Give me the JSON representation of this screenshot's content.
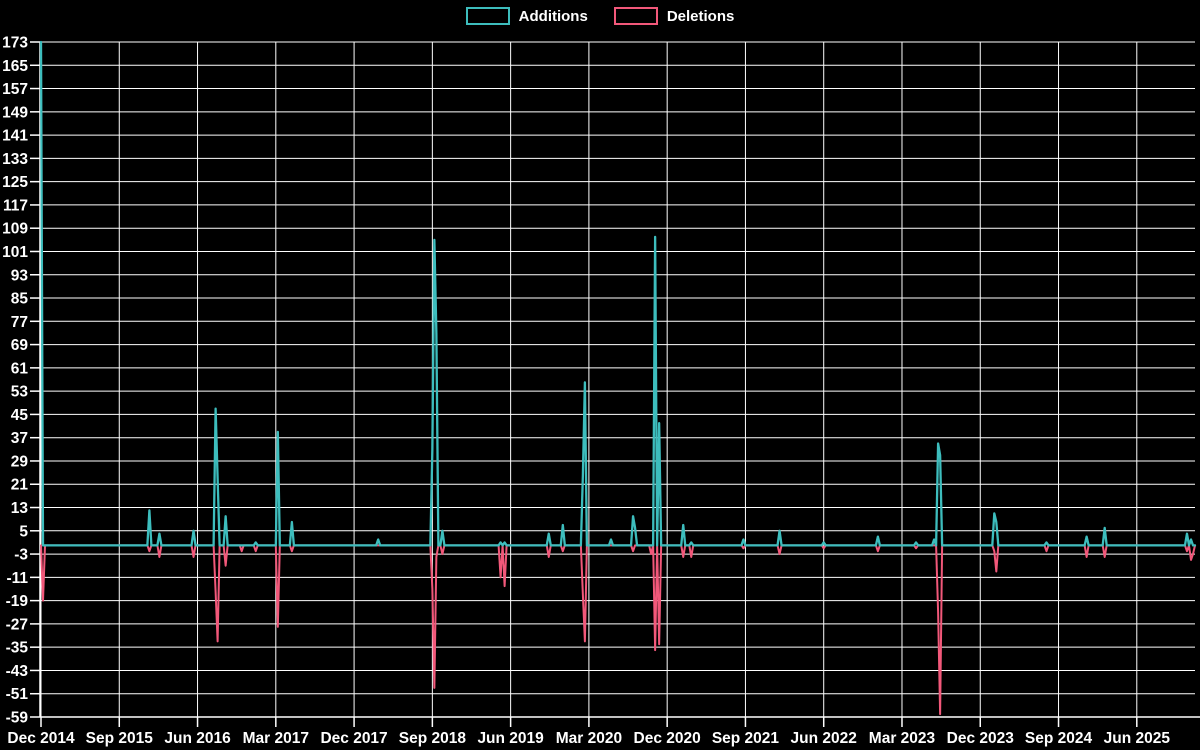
{
  "legend": {
    "additions_label": "Additions",
    "deletions_label": "Deletions"
  },
  "colors": {
    "background": "#000000",
    "grid": "#ffffff",
    "axis": "#ffffff",
    "text": "#ffffff",
    "additions": "#3dbdbd",
    "deletions": "#f2587a"
  },
  "chart_data": {
    "type": "line",
    "title": "",
    "xlabel": "",
    "ylabel": "",
    "legend_position": "top-center",
    "grid": true,
    "ylim": [
      -59,
      173
    ],
    "y_ticks": [
      173,
      165,
      157,
      149,
      141,
      133,
      125,
      117,
      109,
      101,
      93,
      85,
      77,
      69,
      61,
      53,
      45,
      37,
      29,
      21,
      13,
      5,
      -3,
      -11,
      -19,
      -27,
      -35,
      -43,
      -51,
      -59
    ],
    "x_tick_labels": [
      "Dec 2014",
      "Sep 2015",
      "Jun 2016",
      "Mar 2017",
      "Dec 2017",
      "Sep 2018",
      "Jun 2019",
      "Mar 2020",
      "Dec 2020",
      "Sep 2021",
      "Jun 2022",
      "Mar 2023",
      "Dec 2023",
      "Sep 2024",
      "Jun 2025"
    ],
    "x_tick_weeks": [
      0,
      39,
      78,
      117,
      156,
      195,
      234,
      273,
      312,
      351,
      390,
      429,
      468,
      507,
      546
    ],
    "x_unit": "weeks since Dec 2014",
    "total_weeks": 575,
    "baseline_value": 0,
    "series": [
      {
        "name": "Additions",
        "color": "#3dbdbd",
        "sparse_points": {
          "0": 173,
          "54": 12,
          "59": 4,
          "76": 5,
          "87": 47,
          "88": 23,
          "92": 10,
          "107": 1,
          "118": 39,
          "125": 8,
          "168": 2,
          "195": 33,
          "196": 105,
          "197": 73,
          "200": 5,
          "229": 1,
          "231": 1,
          "253": 4,
          "260": 7,
          "270": 24,
          "271": 56,
          "284": 2,
          "295": 10,
          "296": 6,
          "306": 106,
          "308": 42,
          "320": 7,
          "324": 1,
          "350": 2,
          "368": 5,
          "390": 1,
          "417": 3,
          "436": 1,
          "445": 2,
          "447": 35,
          "448": 31,
          "475": 11,
          "476": 8,
          "501": 1,
          "521": 3,
          "530": 6,
          "571": 4,
          "573": 2
        }
      },
      {
        "name": "Deletions",
        "color": "#f2587a",
        "sparse_points": {
          "1": -19,
          "54": -2,
          "59": -4,
          "76": -4,
          "87": -16,
          "88": -33,
          "92": -7,
          "100": -2,
          "107": -2,
          "118": -28,
          "125": -2,
          "195": -15,
          "196": -49,
          "197": -4,
          "200": -3,
          "229": -11,
          "231": -14,
          "253": -4,
          "260": -2,
          "270": -17,
          "271": -33,
          "295": -2,
          "304": -3,
          "306": -36,
          "308": -34,
          "320": -4,
          "324": -4,
          "350": -1,
          "368": -3,
          "390": -1,
          "417": -2,
          "436": -1,
          "447": -23,
          "448": -58,
          "475": -2,
          "476": -9,
          "501": -2,
          "521": -4,
          "530": -4,
          "571": -2,
          "573": -5,
          "574": -3
        }
      }
    ]
  }
}
